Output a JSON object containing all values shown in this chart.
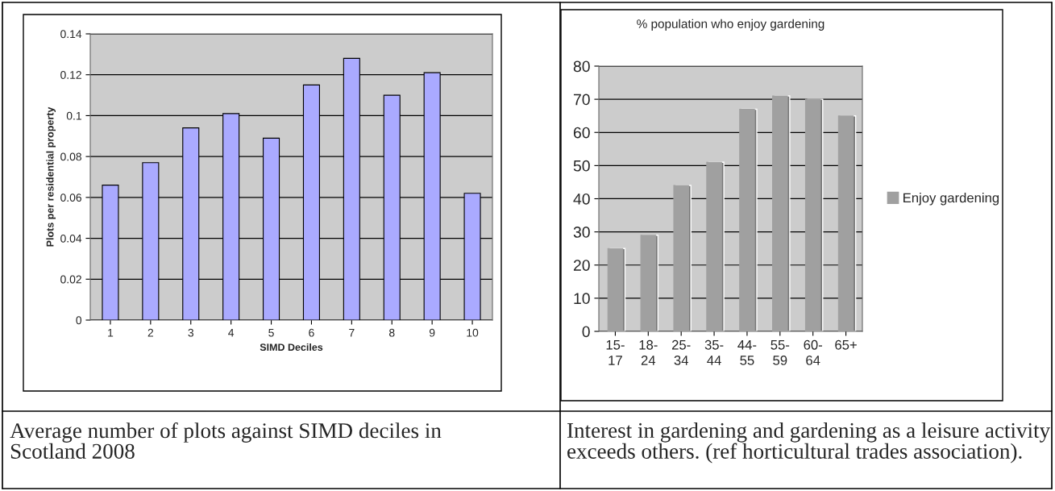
{
  "chart_data": [
    {
      "type": "bar",
      "categories": [
        "1",
        "2",
        "3",
        "4",
        "5",
        "6",
        "7",
        "8",
        "9",
        "10"
      ],
      "series": [
        {
          "color": "#aaaaff",
          "values": [
            0.066,
            0.077,
            0.094,
            0.101,
            0.089,
            0.115,
            0.128,
            0.11,
            0.121,
            0.062
          ]
        }
      ],
      "xlabel": "SIMD Deciles",
      "ylabel": "Plots per residential property",
      "ylim": [
        0,
        0.14
      ],
      "yticks": [
        {
          "value": 0,
          "label": "0"
        },
        0.02,
        0.04,
        0.06,
        0.08,
        {
          "value": 0.1,
          "label": "0.1"
        },
        0.12,
        0.14
      ],
      "grid": "y",
      "legend": false,
      "annotations": [
        "Average number of plots against SIMD deciles in Scotland 2008"
      ]
    },
    {
      "type": "bar",
      "title": "% population who enjoy gardening",
      "categories": [
        "15-\n17",
        "18-\n24",
        "25-\n34",
        "35-\n44",
        "44-\n55",
        "55-\n59",
        "60-\n64",
        "65+"
      ],
      "series": [
        {
          "name": "Enjoy gardening",
          "color": "#a0a0a0",
          "values": [
            25,
            29,
            44,
            51,
            67,
            71,
            70,
            65
          ]
        }
      ],
      "ylim": [
        0,
        80
      ],
      "yticks": [
        0,
        10,
        20,
        30,
        40,
        50,
        60,
        70,
        80
      ],
      "grid": "y",
      "legend": "right",
      "annotations": [
        "Interest in gardening and gardening as a leisure activity exceeds others. (ref horticultural trades association)."
      ]
    }
  ]
}
